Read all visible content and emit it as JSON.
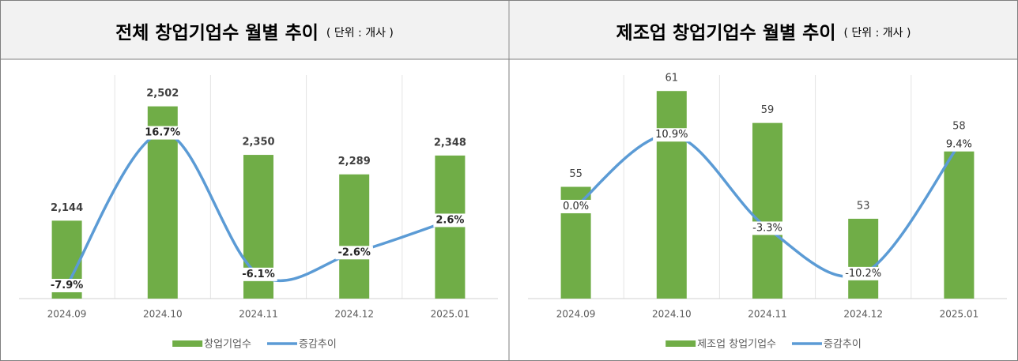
{
  "chart_data": [
    {
      "type": "combo",
      "title": "전체 창업기업수 월별 추이",
      "subtitle": "( 단위 : 개사 )",
      "categories": [
        "2024.09",
        "2024.10",
        "2024.11",
        "2024.12",
        "2025.01"
      ],
      "ylim": [
        1900,
        2600
      ],
      "y2lim": [
        -10,
        26
      ],
      "series": [
        {
          "name": "창업기업수",
          "type": "bar",
          "color": "#70ad47",
          "values": [
            2144,
            2502,
            2350,
            2289,
            2348
          ],
          "value_labels": [
            "2,144",
            "2,502",
            "2,350",
            "2,289",
            "2,348"
          ]
        },
        {
          "name": "증감추이",
          "type": "line",
          "axis": "y2",
          "color": "#5b9bd5",
          "values": [
            -7.9,
            16.7,
            -6.1,
            -2.6,
            2.6
          ],
          "value_labels": [
            "-7.9%",
            "16.7%",
            "-6.1%",
            "-2.6%",
            "2.6%"
          ]
        }
      ]
    },
    {
      "type": "combo",
      "title": "제조업 창업기업수 월별 추이",
      "subtitle": "( 단위 : 개사 )",
      "categories": [
        "2024.09",
        "2024.10",
        "2024.11",
        "2024.12",
        "2025.01"
      ],
      "ylim": [
        48,
        62
      ],
      "y2lim": [
        -14,
        20
      ],
      "series": [
        {
          "name": "제조업 창업기업수",
          "type": "bar",
          "color": "#70ad47",
          "values": [
            55,
            61,
            59,
            53,
            58
          ]
        },
        {
          "name": "증감추이",
          "type": "line",
          "axis": "y2",
          "color": "#5b9bd5",
          "values": [
            0,
            10.9,
            -3.3,
            -10.2,
            9.4
          ],
          "value_labels": [
            "0.0%",
            "10.9%",
            "-3.3%",
            "-10.2%",
            "9.4%"
          ]
        }
      ]
    }
  ]
}
